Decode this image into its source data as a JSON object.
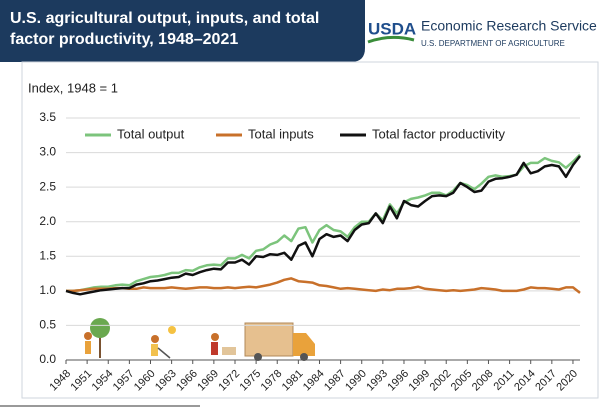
{
  "chart_data": {
    "type": "line",
    "title": "U.S. agricultural output, inputs, and total factor productivity, 1948–2021",
    "logo": {
      "mark": "USDA",
      "agency": "Economic Research Service",
      "department": "U.S. DEPARTMENT OF AGRICULTURE"
    },
    "y_label": "Index, 1948 = 1",
    "x": [
      1948,
      1949,
      1950,
      1951,
      1952,
      1953,
      1954,
      1955,
      1956,
      1957,
      1958,
      1959,
      1960,
      1961,
      1962,
      1963,
      1964,
      1965,
      1966,
      1967,
      1968,
      1969,
      1970,
      1971,
      1972,
      1973,
      1974,
      1975,
      1976,
      1977,
      1978,
      1979,
      1980,
      1981,
      1982,
      1983,
      1984,
      1985,
      1986,
      1987,
      1988,
      1989,
      1990,
      1991,
      1992,
      1993,
      1994,
      1995,
      1996,
      1997,
      1998,
      1999,
      2000,
      2001,
      2002,
      2003,
      2004,
      2005,
      2006,
      2007,
      2008,
      2009,
      2010,
      2011,
      2012,
      2013,
      2014,
      2015,
      2016,
      2017,
      2018,
      2019,
      2020,
      2021
    ],
    "series": [
      {
        "name": "Total output",
        "color": "#7cc47c",
        "values": [
          1.0,
          1.0,
          1.01,
          1.03,
          1.05,
          1.06,
          1.06,
          1.08,
          1.09,
          1.08,
          1.14,
          1.17,
          1.2,
          1.21,
          1.23,
          1.26,
          1.26,
          1.3,
          1.29,
          1.34,
          1.37,
          1.38,
          1.37,
          1.47,
          1.47,
          1.52,
          1.47,
          1.58,
          1.6,
          1.67,
          1.71,
          1.8,
          1.72,
          1.9,
          1.92,
          1.7,
          1.88,
          1.95,
          1.88,
          1.86,
          1.78,
          1.92,
          2.0,
          2.0,
          2.12,
          2.02,
          2.25,
          2.12,
          2.28,
          2.33,
          2.35,
          2.38,
          2.42,
          2.42,
          2.38,
          2.45,
          2.56,
          2.53,
          2.47,
          2.55,
          2.65,
          2.67,
          2.65,
          2.66,
          2.68,
          2.8,
          2.85,
          2.85,
          2.92,
          2.88,
          2.86,
          2.78,
          2.87,
          2.97
        ]
      },
      {
        "name": "Total inputs",
        "color": "#c8702a",
        "values": [
          1.0,
          1.0,
          1.01,
          1.02,
          1.03,
          1.03,
          1.03,
          1.04,
          1.04,
          1.03,
          1.03,
          1.05,
          1.04,
          1.04,
          1.04,
          1.05,
          1.04,
          1.03,
          1.04,
          1.05,
          1.05,
          1.04,
          1.04,
          1.05,
          1.04,
          1.05,
          1.06,
          1.05,
          1.07,
          1.09,
          1.12,
          1.16,
          1.18,
          1.14,
          1.13,
          1.12,
          1.08,
          1.07,
          1.05,
          1.03,
          1.04,
          1.03,
          1.02,
          1.01,
          1.0,
          1.02,
          1.01,
          1.03,
          1.03,
          1.04,
          1.06,
          1.03,
          1.02,
          1.01,
          1.0,
          1.01,
          1.0,
          1.01,
          1.02,
          1.04,
          1.03,
          1.02,
          1.0,
          1.0,
          1.0,
          1.02,
          1.05,
          1.04,
          1.04,
          1.03,
          1.02,
          1.05,
          1.05,
          0.97
        ]
      },
      {
        "name": "Total factor productivity",
        "color": "#111111",
        "values": [
          1.0,
          0.97,
          0.95,
          0.97,
          0.99,
          1.01,
          1.02,
          1.03,
          1.04,
          1.04,
          1.09,
          1.11,
          1.14,
          1.15,
          1.17,
          1.19,
          1.2,
          1.25,
          1.23,
          1.27,
          1.3,
          1.32,
          1.31,
          1.41,
          1.41,
          1.45,
          1.38,
          1.5,
          1.49,
          1.53,
          1.52,
          1.55,
          1.45,
          1.65,
          1.7,
          1.5,
          1.75,
          1.82,
          1.78,
          1.8,
          1.72,
          1.88,
          1.96,
          1.98,
          2.12,
          1.98,
          2.22,
          2.05,
          2.3,
          2.24,
          2.22,
          2.3,
          2.37,
          2.38,
          2.37,
          2.42,
          2.56,
          2.5,
          2.43,
          2.45,
          2.58,
          2.62,
          2.63,
          2.65,
          2.68,
          2.85,
          2.7,
          2.73,
          2.8,
          2.82,
          2.8,
          2.65,
          2.82,
          2.95
        ]
      }
    ],
    "xlim": [
      1948,
      2021
    ],
    "xticks": [
      1948,
      1951,
      1954,
      1957,
      1960,
      1963,
      1966,
      1969,
      1972,
      1975,
      1978,
      1981,
      1984,
      1987,
      1990,
      1993,
      1996,
      1999,
      2002,
      2005,
      2008,
      2011,
      2014,
      2017,
      2020
    ],
    "ylim": [
      0,
      3.5
    ],
    "yticks": [
      {
        "value": 0,
        "label": "0.0"
      },
      0.5,
      {
        "value": 1,
        "label": "1.0"
      },
      1.5,
      {
        "value": 2,
        "label": "2.0"
      },
      2.5,
      {
        "value": 3,
        "label": "3.0"
      },
      3.5
    ],
    "grid": true,
    "legend": "top"
  }
}
